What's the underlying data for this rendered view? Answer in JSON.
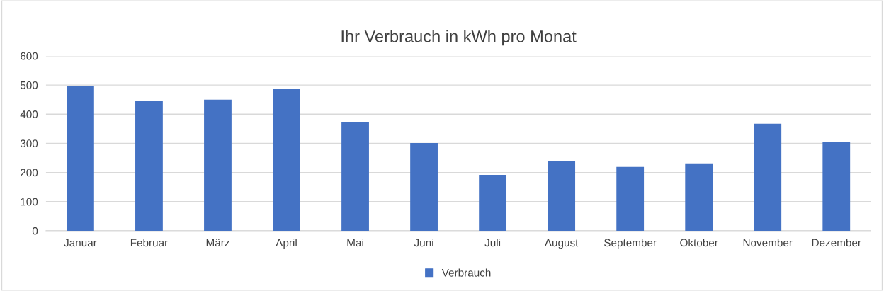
{
  "chart_data": {
    "type": "bar",
    "title": "Ihr Verbrauch in kWh pro Monat",
    "categories": [
      "Januar",
      "Februar",
      "März",
      "April",
      "Mai",
      "Juni",
      "Juli",
      "August",
      "September",
      "Oktober",
      "November",
      "Dezember"
    ],
    "series": [
      {
        "name": "Verbrauch",
        "color": "#4472c4",
        "values": [
          498,
          445,
          450,
          486,
          374,
          301,
          192,
          240,
          219,
          231,
          367,
          306
        ]
      }
    ],
    "ylim": [
      0,
      600
    ],
    "yticks": [
      0,
      100,
      200,
      300,
      400,
      500,
      600
    ],
    "grid": "y",
    "legend": "bottom"
  }
}
